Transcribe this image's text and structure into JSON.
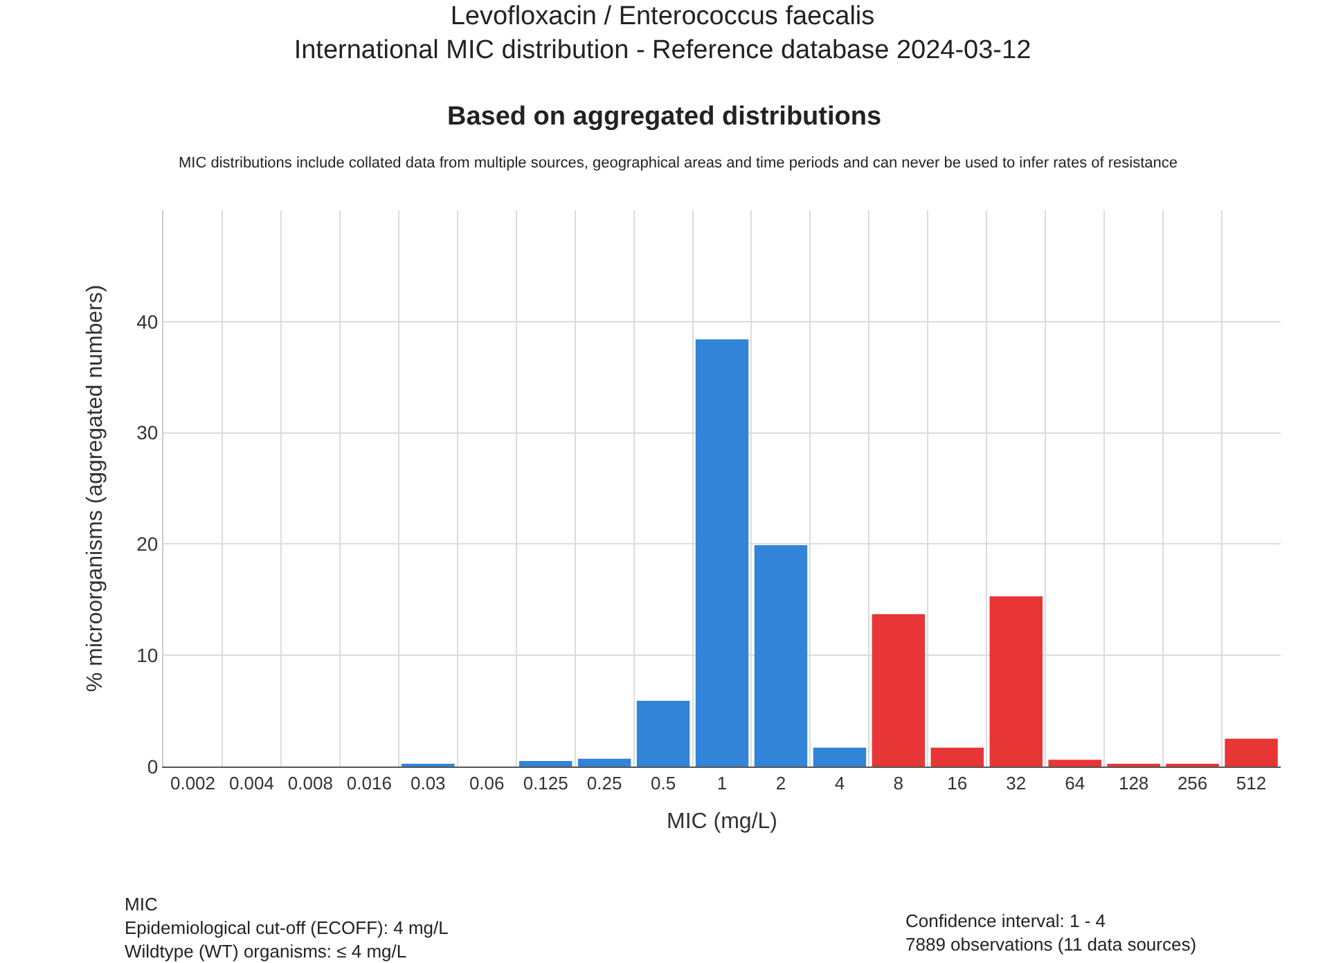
{
  "chart_data": {
    "type": "bar",
    "title": "Levofloxacin / Enterococcus faecalis",
    "subtitle": "International MIC distribution - Reference database 2024-03-12",
    "annotations": [
      "Based on aggregated distributions",
      "MIC distributions include collated data from multiple sources, geographical areas and time periods and can never be used to infer rates of resistance",
      "MIC\nEpidemiological cut-off (ECOFF): 4 mg/L\nWildtype (WT) organisms: ≤ 4 mg/L",
      "Confidence interval: 1 - 4\n7889 observations (11 data sources)"
    ],
    "xlabel": "MIC (mg/L)",
    "ylabel": "% microorganisms (aggregated numbers)",
    "categories": [
      "0.002",
      "0.004",
      "0.008",
      "0.016",
      "0.03",
      "0.06",
      "0.125",
      "0.25",
      "0.5",
      "1",
      "2",
      "4",
      "8",
      "16",
      "32",
      "64",
      "128",
      "256",
      "512"
    ],
    "values": [
      0,
      0,
      0,
      0,
      0.2,
      0,
      0.5,
      0.7,
      5.9,
      38.4,
      19.9,
      1.7,
      13.7,
      1.7,
      15.3,
      0.6,
      0.2,
      0.2,
      2.5
    ],
    "colors": [
      "#3184d8",
      "#3184d8",
      "#3184d8",
      "#3184d8",
      "#3184d8",
      "#3184d8",
      "#3184d8",
      "#3184d8",
      "#3184d8",
      "#3184d8",
      "#3184d8",
      "#3184d8",
      "#e83535",
      "#e83535",
      "#e83535",
      "#e83535",
      "#e83535",
      "#e83535",
      "#e83535"
    ],
    "ylim": [
      0,
      50
    ],
    "yticks": [
      0,
      10,
      20,
      30,
      40
    ],
    "grid": true
  }
}
